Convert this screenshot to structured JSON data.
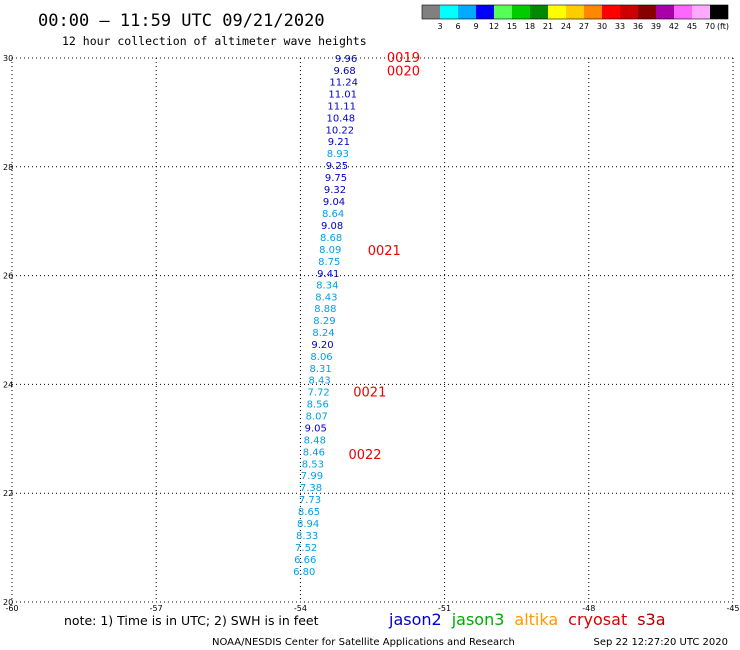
{
  "header": {
    "title": "00:00 – 11:59 UTC 09/21/2020",
    "subtitle": "12 hour collection of altimeter wave heights"
  },
  "colors": {
    "jason2": "#0000cc",
    "jason3": "#00aa00",
    "altika": "#ff9900",
    "cryosat": "#dd0000",
    "s3a": "#aa0000",
    "cycle": "#ee0000",
    "dark_value": "#0000cc",
    "light_value": "#00a0e8"
  },
  "scale": {
    "labels": [
      "3",
      "6",
      "9",
      "12",
      "15",
      "18",
      "21",
      "24",
      "27",
      "30",
      "33",
      "36",
      "39",
      "42",
      "45",
      "70"
    ],
    "colors": [
      "#808080",
      "#00ffff",
      "#00aaff",
      "#0000ff",
      "#55ff55",
      "#00cc00",
      "#008800",
      "#ffff00",
      "#ffcc00",
      "#ff8800",
      "#ff0000",
      "#cc0000",
      "#880000",
      "#aa00aa",
      "#ff66ff",
      "#ffaaff",
      "#000000"
    ],
    "unit": "(ft)"
  },
  "chart_data": {
    "type": "scatter",
    "xlim": [
      -60,
      -45
    ],
    "ylim": [
      20,
      30
    ],
    "x_ticks": [
      "-60",
      "-57",
      "-54",
      "-51",
      "-48",
      "-45"
    ],
    "y_ticks": [
      "20",
      "22",
      "24",
      "26",
      "28",
      "30"
    ],
    "grid": true,
    "series": [
      {
        "name": "jason2",
        "points": [
          {
            "lon": -53.05,
            "lat": 30.0,
            "swh": "9.96",
            "shade": "dark"
          },
          {
            "lon": -53.08,
            "lat": 29.78,
            "swh": "9.68",
            "shade": "dark"
          },
          {
            "lon": -53.1,
            "lat": 29.57,
            "swh": "11.24",
            "shade": "dark"
          },
          {
            "lon": -53.12,
            "lat": 29.35,
            "swh": "11.01",
            "shade": "dark"
          },
          {
            "lon": -53.14,
            "lat": 29.13,
            "swh": "11.11",
            "shade": "dark"
          },
          {
            "lon": -53.16,
            "lat": 28.91,
            "swh": "10.48",
            "shade": "dark"
          },
          {
            "lon": -53.18,
            "lat": 28.69,
            "swh": "10.22",
            "shade": "dark"
          },
          {
            "lon": -53.2,
            "lat": 28.47,
            "swh": "9.21",
            "shade": "dark"
          },
          {
            "lon": -53.22,
            "lat": 28.25,
            "swh": "8.93",
            "shade": "light"
          },
          {
            "lon": -53.24,
            "lat": 28.03,
            "swh": "9.25",
            "shade": "dark"
          },
          {
            "lon": -53.26,
            "lat": 27.81,
            "swh": "9.75",
            "shade": "dark"
          },
          {
            "lon": -53.28,
            "lat": 27.59,
            "swh": "9.32",
            "shade": "dark"
          },
          {
            "lon": -53.3,
            "lat": 27.37,
            "swh": "9.04",
            "shade": "dark"
          },
          {
            "lon": -53.32,
            "lat": 27.15,
            "swh": "8.64",
            "shade": "light"
          },
          {
            "lon": -53.34,
            "lat": 26.93,
            "swh": "9.08",
            "shade": "dark"
          },
          {
            "lon": -53.36,
            "lat": 26.71,
            "swh": "8.68",
            "shade": "light"
          },
          {
            "lon": -53.38,
            "lat": 26.49,
            "swh": "8.09",
            "shade": "light"
          },
          {
            "lon": -53.4,
            "lat": 26.27,
            "swh": "8.75",
            "shade": "light"
          },
          {
            "lon": -53.42,
            "lat": 26.05,
            "swh": "9.41",
            "shade": "dark"
          },
          {
            "lon": -53.44,
            "lat": 25.84,
            "swh": "8.34",
            "shade": "light"
          },
          {
            "lon": -53.46,
            "lat": 25.62,
            "swh": "8.43",
            "shade": "light"
          },
          {
            "lon": -53.48,
            "lat": 25.4,
            "swh": "8.88",
            "shade": "light"
          },
          {
            "lon": -53.5,
            "lat": 25.18,
            "swh": "8.29",
            "shade": "light"
          },
          {
            "lon": -53.52,
            "lat": 24.96,
            "swh": "8.24",
            "shade": "light"
          },
          {
            "lon": -53.54,
            "lat": 24.74,
            "swh": "9.20",
            "shade": "dark"
          },
          {
            "lon": -53.56,
            "lat": 24.52,
            "swh": "8.06",
            "shade": "light"
          },
          {
            "lon": -53.58,
            "lat": 24.3,
            "swh": "8.31",
            "shade": "light"
          },
          {
            "lon": -53.6,
            "lat": 24.09,
            "swh": "8.43",
            "shade": "light"
          },
          {
            "lon": -53.62,
            "lat": 23.87,
            "swh": "7.72",
            "shade": "light"
          },
          {
            "lon": -53.64,
            "lat": 23.65,
            "swh": "8.56",
            "shade": "light"
          },
          {
            "lon": -53.66,
            "lat": 23.43,
            "swh": "8.07",
            "shade": "light"
          },
          {
            "lon": -53.68,
            "lat": 23.21,
            "swh": "9.05",
            "shade": "dark"
          },
          {
            "lon": -53.7,
            "lat": 22.99,
            "swh": "8.48",
            "shade": "light"
          },
          {
            "lon": -53.72,
            "lat": 22.77,
            "swh": "8.46",
            "shade": "light"
          },
          {
            "lon": -53.74,
            "lat": 22.55,
            "swh": "8.53",
            "shade": "light"
          },
          {
            "lon": -53.76,
            "lat": 22.33,
            "swh": "7.99",
            "shade": "light"
          },
          {
            "lon": -53.78,
            "lat": 22.11,
            "swh": "7.38",
            "shade": "light"
          },
          {
            "lon": -53.8,
            "lat": 21.89,
            "swh": "7.73",
            "shade": "light"
          },
          {
            "lon": -53.82,
            "lat": 21.67,
            "swh": "8.65",
            "shade": "light"
          },
          {
            "lon": -53.84,
            "lat": 21.45,
            "swh": "8.94",
            "shade": "light"
          },
          {
            "lon": -53.86,
            "lat": 21.23,
            "swh": "8.33",
            "shade": "light"
          },
          {
            "lon": -53.88,
            "lat": 21.01,
            "swh": "7.52",
            "shade": "light"
          },
          {
            "lon": -53.9,
            "lat": 20.79,
            "swh": "6.66",
            "shade": "light"
          },
          {
            "lon": -53.92,
            "lat": 20.57,
            "swh": "6.80",
            "shade": "light"
          }
        ]
      }
    ],
    "cycle_labels": [
      {
        "text": "0019",
        "lon": -52.2,
        "lat": 30.0
      },
      {
        "text": "0020",
        "lon": -52.2,
        "lat": 29.75
      },
      {
        "text": "0021",
        "lon": -52.6,
        "lat": 26.45
      },
      {
        "text": "0021",
        "lon": -52.9,
        "lat": 23.85
      },
      {
        "text": "0022",
        "lon": -53.0,
        "lat": 22.7
      }
    ]
  },
  "footer": {
    "note": "note:  1)  Time is in UTC;  2)  SWH is in feet",
    "satellites": [
      {
        "name": "jason2",
        "color": "#0000cc"
      },
      {
        "name": "jason3",
        "color": "#00aa00"
      },
      {
        "name": "altika",
        "color": "#ff9900"
      },
      {
        "name": "cryosat",
        "color": "#dd0000"
      },
      {
        "name": "s3a",
        "color": "#aa0000"
      }
    ],
    "credit": "NOAA/NESDIS Center for Satellite Applications and Research",
    "timestamp": "Sep 22 12:27:20 UTC 2020"
  }
}
